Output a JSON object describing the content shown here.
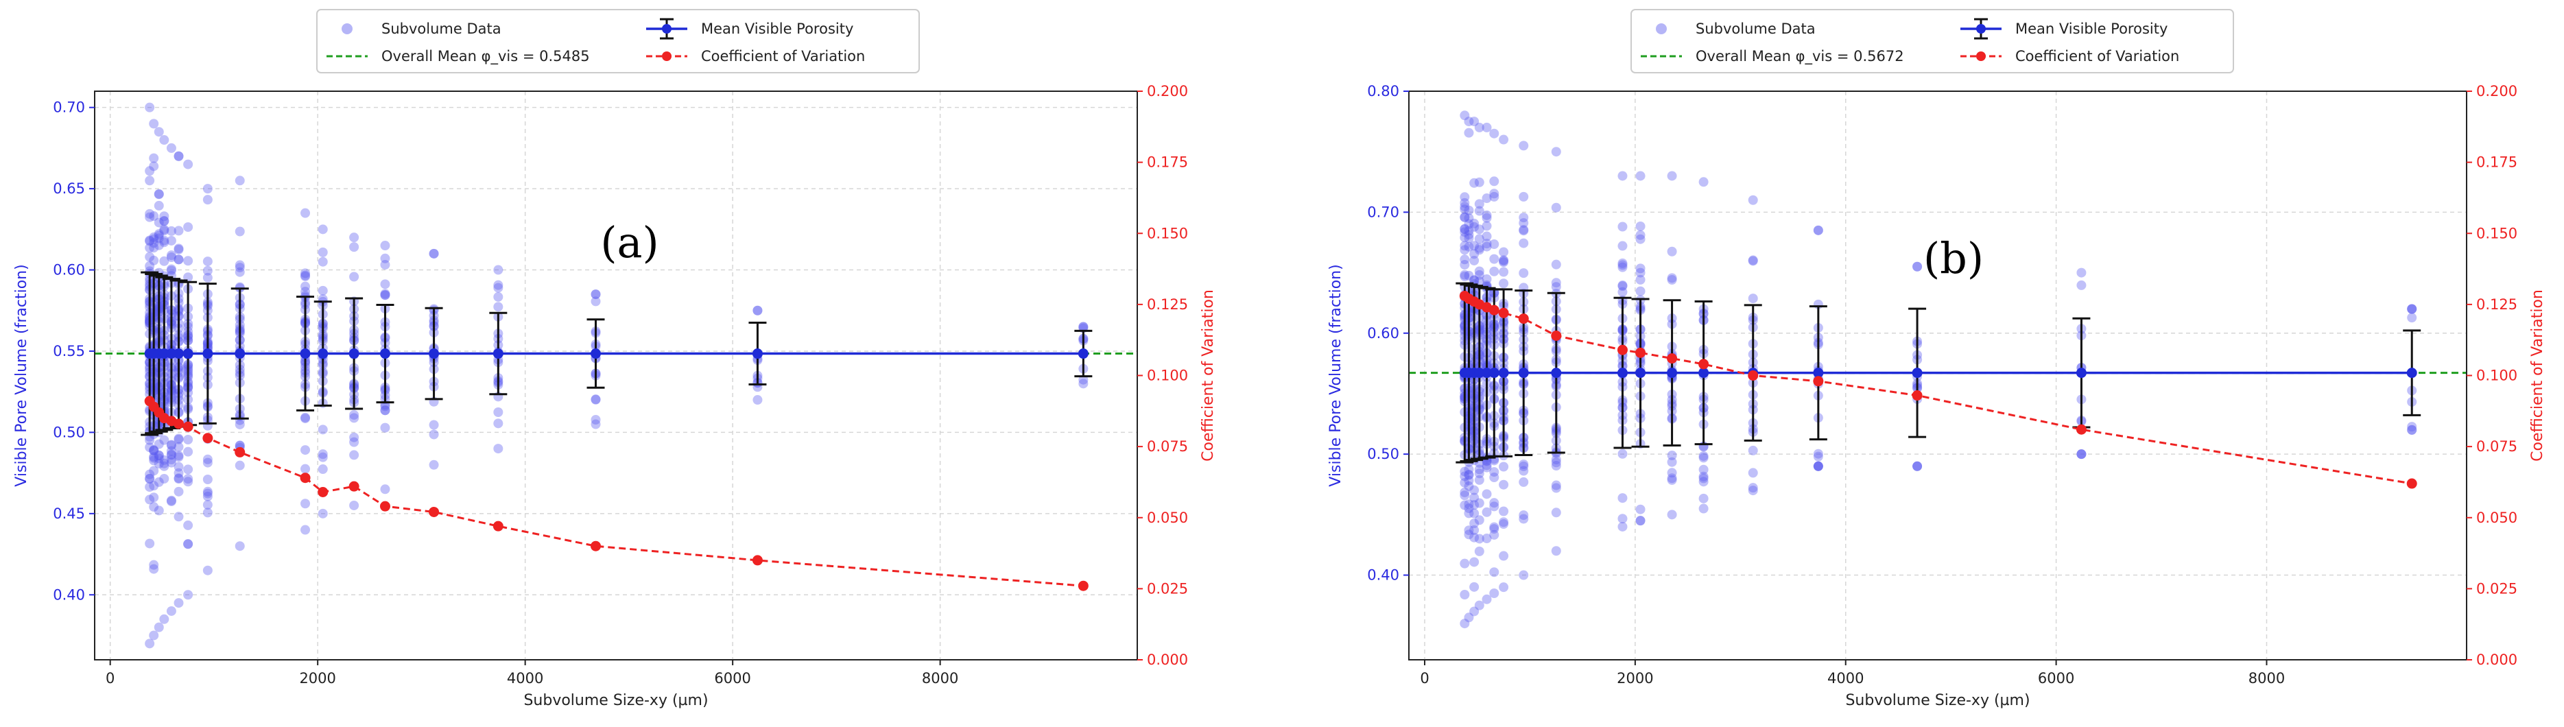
{
  "chart_data": [
    {
      "type": "scatter",
      "panel_label": "(a)",
      "xlabel": "Subvolume Size-xy (µm)",
      "ylabel": "Visible Pore Volume (fraction)",
      "y2label": "Coefficient of Variation",
      "xlim": [
        -150,
        9900
      ],
      "ylim": [
        0.36,
        0.71
      ],
      "y2lim": [
        0.0,
        0.2
      ],
      "x_ticks": [
        0,
        2000,
        4000,
        6000,
        8000
      ],
      "y_ticks": [
        0.4,
        0.45,
        0.5,
        0.55,
        0.6,
        0.65,
        0.7
      ],
      "y2_ticks": [
        0.0,
        0.025,
        0.05,
        0.075,
        0.1,
        0.125,
        0.15,
        0.175,
        0.2
      ],
      "grid": true,
      "legend": {
        "placement": "top-center, above plot",
        "entries": [
          "Subvolume Data",
          "Mean Visible Porosity",
          "Overall Mean φ_vis = 0.5485",
          "Coefficient of Variation"
        ]
      },
      "overall_mean": 0.5485,
      "sizes": [
        380,
        420,
        470,
        520,
        590,
        660,
        750,
        940,
        1250,
        1880,
        2050,
        2350,
        2650,
        3120,
        3740,
        4680,
        6240,
        9380
      ],
      "mean_porosity": [
        0.5485,
        0.5485,
        0.5485,
        0.5485,
        0.5485,
        0.5485,
        0.5485,
        0.5485,
        0.5485,
        0.5485,
        0.5485,
        0.5485,
        0.5485,
        0.5485,
        0.5485,
        0.5485,
        0.5485,
        0.5485
      ],
      "std_porosity": [
        0.05,
        0.049,
        0.048,
        0.047,
        0.046,
        0.045,
        0.044,
        0.043,
        0.04,
        0.035,
        0.032,
        0.034,
        0.03,
        0.028,
        0.025,
        0.021,
        0.019,
        0.014
      ],
      "cv": [
        0.091,
        0.089,
        0.087,
        0.085,
        0.084,
        0.083,
        0.082,
        0.078,
        0.073,
        0.064,
        0.059,
        0.061,
        0.054,
        0.052,
        0.047,
        0.04,
        0.035,
        0.026
      ],
      "data_min": [
        0.37,
        0.375,
        0.38,
        0.385,
        0.39,
        0.395,
        0.4,
        0.415,
        0.43,
        0.44,
        0.45,
        0.455,
        0.465,
        0.48,
        0.49,
        0.505,
        0.52,
        0.53
      ],
      "data_max": [
        0.7,
        0.69,
        0.685,
        0.68,
        0.675,
        0.67,
        0.665,
        0.65,
        0.655,
        0.635,
        0.625,
        0.62,
        0.615,
        0.61,
        0.6,
        0.585,
        0.575,
        0.565
      ]
    },
    {
      "type": "scatter",
      "panel_label": "(b)",
      "xlabel": "Subvolume Size-xy (µm)",
      "ylabel": "Visible Pore Volume (fraction)",
      "y2label": "Coefficient of Variation",
      "xlim": [
        -150,
        9900
      ],
      "ylim": [
        0.33,
        0.8
      ],
      "y2lim": [
        0.0,
        0.2
      ],
      "x_ticks": [
        0,
        2000,
        4000,
        6000,
        8000
      ],
      "y_ticks": [
        0.4,
        0.5,
        0.6,
        0.7,
        0.8
      ],
      "y2_ticks": [
        0.0,
        0.025,
        0.05,
        0.075,
        0.1,
        0.125,
        0.15,
        0.175,
        0.2
      ],
      "grid": true,
      "legend": {
        "placement": "top-center, above plot",
        "entries": [
          "Subvolume Data",
          "Mean Visible Porosity",
          "Overall Mean φ_vis = 0.5672",
          "Coefficient of Variation"
        ]
      },
      "overall_mean": 0.5672,
      "sizes": [
        380,
        420,
        470,
        520,
        590,
        660,
        750,
        940,
        1250,
        1880,
        2050,
        2350,
        2650,
        3120,
        3740,
        4680,
        6240,
        9380
      ],
      "mean_porosity": [
        0.5672,
        0.5672,
        0.5672,
        0.5672,
        0.5672,
        0.5672,
        0.5672,
        0.5672,
        0.5672,
        0.5672,
        0.5672,
        0.5672,
        0.5672,
        0.5672,
        0.5672,
        0.5672,
        0.5672,
        0.5672
      ],
      "std_porosity": [
        0.074,
        0.073,
        0.072,
        0.071,
        0.07,
        0.069,
        0.069,
        0.068,
        0.066,
        0.062,
        0.061,
        0.06,
        0.059,
        0.056,
        0.055,
        0.053,
        0.045,
        0.035
      ],
      "cv": [
        0.128,
        0.127,
        0.126,
        0.125,
        0.124,
        0.123,
        0.122,
        0.12,
        0.114,
        0.109,
        0.108,
        0.106,
        0.104,
        0.1,
        0.098,
        0.093,
        0.081,
        0.062
      ],
      "data_min": [
        0.36,
        0.365,
        0.37,
        0.375,
        0.38,
        0.385,
        0.39,
        0.4,
        0.42,
        0.44,
        0.445,
        0.45,
        0.455,
        0.47,
        0.49,
        0.49,
        0.5,
        0.52
      ],
      "data_max": [
        0.78,
        0.775,
        0.775,
        0.77,
        0.77,
        0.765,
        0.76,
        0.755,
        0.75,
        0.73,
        0.73,
        0.73,
        0.725,
        0.71,
        0.685,
        0.655,
        0.65,
        0.62
      ]
    }
  ],
  "colors": {
    "subvolume_points": "#5a5aee",
    "mean_line": "#1f2bd6",
    "errorbar": "#111111",
    "overall_mean_line": "#1f9e1f",
    "cv_line": "#ee2222",
    "left_axis_text": "#2a2ae0",
    "right_axis_text": "#ee2222",
    "grid": "#d6d6d6"
  }
}
